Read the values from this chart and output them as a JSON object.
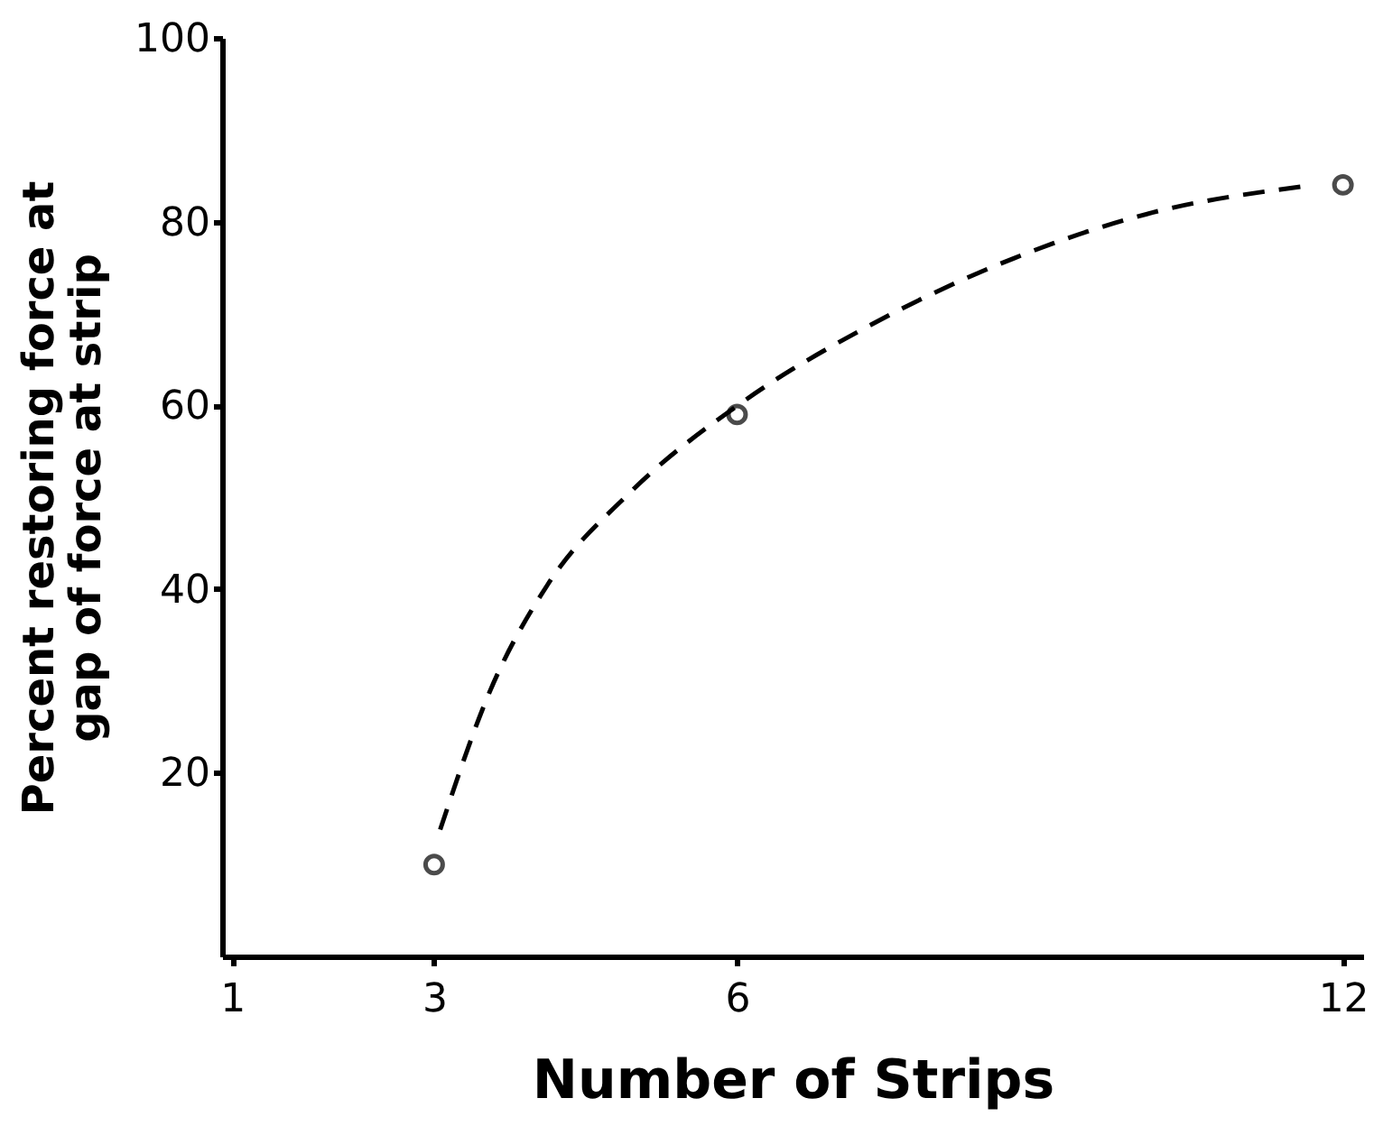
{
  "chart_data": {
    "type": "scatter",
    "xlabel": "Number of Strips",
    "ylabel": "Percent restoring force at\ngap of force at strip",
    "series": [
      {
        "color": "#000000",
        "marker": "circle",
        "x": [
          3,
          6,
          12
        ],
        "values": [
          10,
          59,
          84
        ]
      },
      {
        "type": "line",
        "color": "#000000",
        "line_style": "dashed",
        "marker": "none",
        "x": [
          3.06,
          3.55,
          4.12,
          4.93,
          6.06,
          7.28,
          8.74,
          10.12,
          11.58
        ],
        "values": [
          13.8,
          28.8,
          40.4,
          50.4,
          60.4,
          68.5,
          76,
          81,
          83.8
        ]
      }
    ],
    "xlim": [
      0.9,
      12.2
    ],
    "ylim": [
      0,
      100
    ],
    "xticks": [
      1,
      3,
      6,
      12
    ],
    "yticks": [
      20,
      40,
      60,
      80,
      100
    ],
    "grid": false
  }
}
